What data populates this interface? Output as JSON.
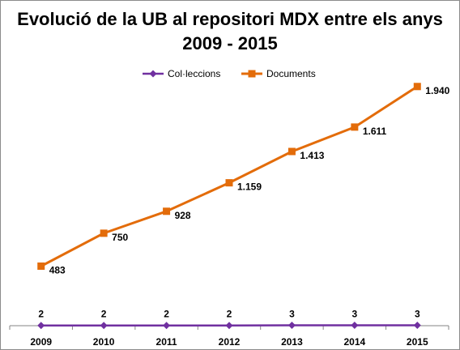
{
  "chart_data": {
    "type": "line",
    "title": "Evolució de la UB al repositori MDX entre els anys 2009 - 2015",
    "categories": [
      "2009",
      "2010",
      "2011",
      "2012",
      "2013",
      "2014",
      "2015"
    ],
    "series": [
      {
        "name": "Col·leccions",
        "values": [
          2,
          2,
          2,
          2,
          3,
          3,
          3
        ],
        "labels": [
          "2",
          "2",
          "2",
          "2",
          "3",
          "3",
          "3"
        ],
        "color": "#7030a0",
        "marker": "diamond"
      },
      {
        "name": "Documents",
        "values": [
          483,
          750,
          928,
          1159,
          1413,
          1611,
          1940
        ],
        "labels": [
          "483",
          "750",
          "928",
          "1.159",
          "1.413",
          "1.611",
          "1.940"
        ],
        "color": "#e36c0a",
        "marker": "square"
      }
    ],
    "ylim": [
      0,
      2300
    ],
    "grid": false,
    "legend_position": "top"
  }
}
